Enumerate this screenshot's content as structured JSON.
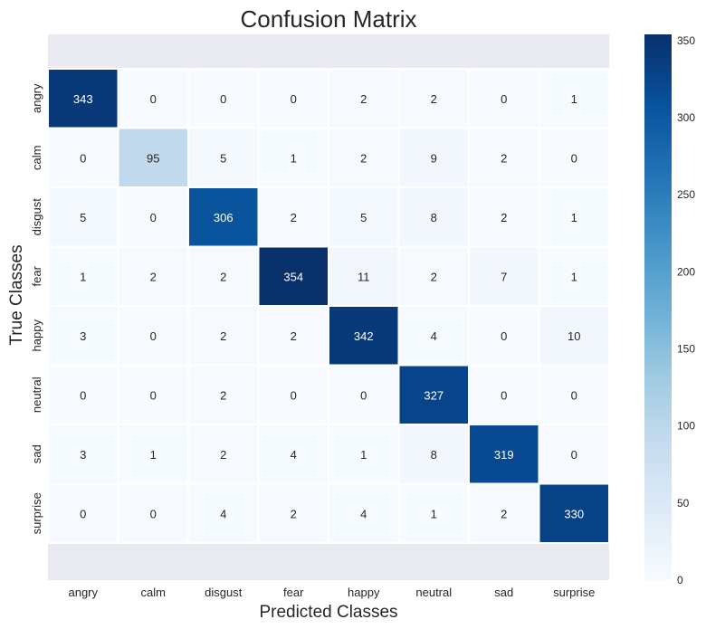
{
  "chart_data": {
    "type": "heatmap",
    "title": "Confusion Matrix",
    "xlabel": "Predicted Classes",
    "ylabel": "True Classes",
    "x_categories": [
      "angry",
      "calm",
      "disgust",
      "fear",
      "happy",
      "neutral",
      "sad",
      "surprise"
    ],
    "y_categories": [
      "angry",
      "calm",
      "disgust",
      "fear",
      "happy",
      "neutral",
      "sad",
      "surprise"
    ],
    "values": [
      [
        343,
        0,
        0,
        0,
        2,
        2,
        0,
        1
      ],
      [
        0,
        95,
        5,
        1,
        2,
        9,
        2,
        0
      ],
      [
        5,
        0,
        306,
        2,
        5,
        8,
        2,
        1
      ],
      [
        1,
        2,
        2,
        354,
        11,
        2,
        7,
        1
      ],
      [
        3,
        0,
        2,
        2,
        342,
        4,
        0,
        10
      ],
      [
        0,
        0,
        2,
        0,
        0,
        327,
        0,
        0
      ],
      [
        3,
        1,
        2,
        4,
        1,
        8,
        319,
        0
      ],
      [
        0,
        0,
        4,
        2,
        4,
        1,
        2,
        330
      ]
    ],
    "colorbar": {
      "colormap": "Blues",
      "range": [
        0,
        354
      ],
      "ticks": [
        0,
        50,
        100,
        150,
        200,
        250,
        300,
        350
      ]
    },
    "colors": {
      "background_band": "#eaeaf2",
      "cell_border": "#ffffff",
      "text_dark": "#262626",
      "text_light": "#ffffff"
    }
  }
}
